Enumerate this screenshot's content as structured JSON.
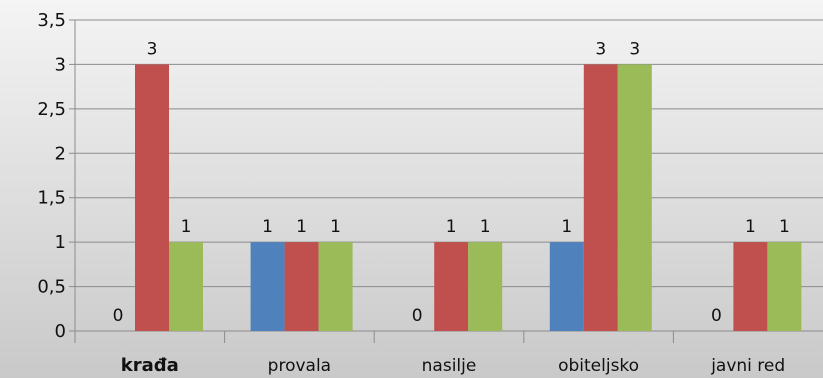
{
  "chart_data": {
    "type": "bar",
    "categories": [
      "krađa",
      "provala",
      "nasilje",
      "obiteljsko",
      "javni red"
    ],
    "series": [
      {
        "values": [
          0,
          1,
          0,
          1,
          0
        ],
        "color": "#4f81bd"
      },
      {
        "values": [
          3,
          1,
          1,
          3,
          1
        ],
        "color": "#c0504d"
      },
      {
        "values": [
          1,
          1,
          1,
          3,
          1
        ],
        "color": "#9bbb59"
      }
    ],
    "ylim": [
      0,
      3.5
    ],
    "yticks": [
      "0",
      "0,5",
      "1",
      "1,5",
      "2",
      "2,5",
      "3",
      "3,5"
    ],
    "grid": true,
    "legend": "none",
    "title": "",
    "xlabel": "",
    "ylabel": ""
  }
}
